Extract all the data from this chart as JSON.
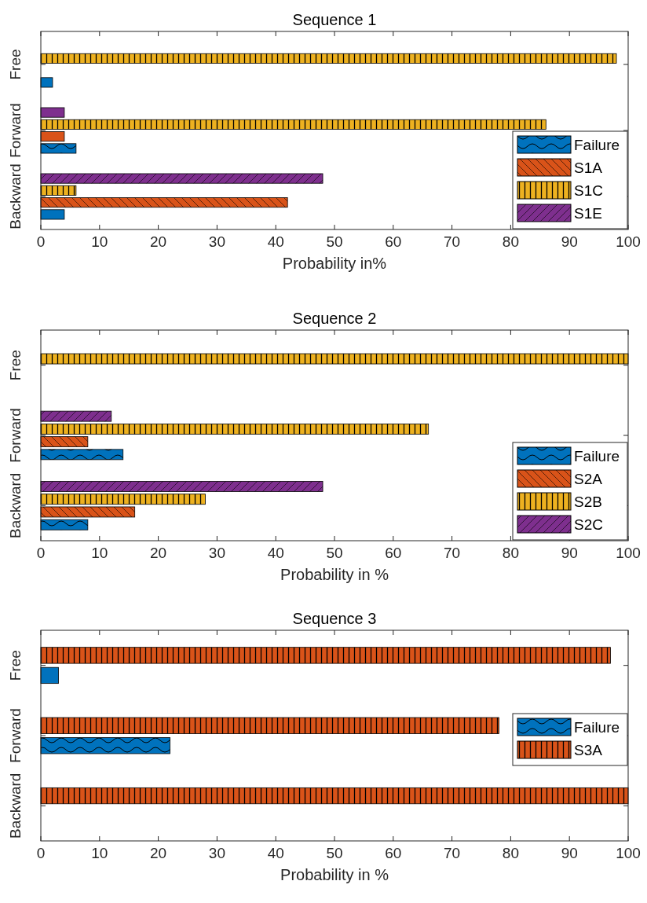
{
  "chart_data": [
    {
      "type": "bar",
      "orientation": "horizontal",
      "title": "Sequence 1",
      "xlabel": "Probability in%",
      "categories": [
        "Free",
        "Forward",
        "Backward"
      ],
      "xlim": [
        0,
        100
      ],
      "xticks": [
        0,
        10,
        20,
        30,
        40,
        50,
        60,
        70,
        80,
        90,
        100
      ],
      "legend": "bottom right",
      "series": [
        {
          "name": "Failure",
          "color": "#0072bd",
          "values": [
            2,
            6,
            4
          ]
        },
        {
          "name": "S1A",
          "color": "#d95319",
          "values": [
            0,
            4,
            42
          ]
        },
        {
          "name": "S1C",
          "color": "#edb120",
          "values": [
            98,
            86,
            6
          ]
        },
        {
          "name": "S1E",
          "color": "#7e2f8e",
          "values": [
            0,
            4,
            48
          ]
        }
      ]
    },
    {
      "type": "bar",
      "orientation": "horizontal",
      "title": "Sequence 2",
      "xlabel": "Probability in %",
      "categories": [
        "Free",
        "Forward",
        "Backward"
      ],
      "xlim": [
        0,
        100
      ],
      "xticks": [
        0,
        10,
        20,
        30,
        40,
        50,
        60,
        70,
        80,
        90,
        100
      ],
      "legend": "bottom right",
      "series": [
        {
          "name": "Failure",
          "color": "#0072bd",
          "values": [
            0,
            14,
            8
          ]
        },
        {
          "name": "S2A",
          "color": "#d95319",
          "values": [
            0,
            8,
            16
          ]
        },
        {
          "name": "S2B",
          "color": "#edb120",
          "values": [
            100,
            66,
            28
          ]
        },
        {
          "name": "S2C",
          "color": "#7e2f8e",
          "values": [
            0,
            12,
            48
          ]
        }
      ]
    },
    {
      "type": "bar",
      "orientation": "horizontal",
      "title": "Sequence 3",
      "xlabel": "Probability in %",
      "categories": [
        "Free",
        "Forward",
        "Backward"
      ],
      "xlim": [
        0,
        100
      ],
      "xticks": [
        0,
        10,
        20,
        30,
        40,
        50,
        60,
        70,
        80,
        90,
        100
      ],
      "legend": "right",
      "series": [
        {
          "name": "Failure",
          "color": "#0072bd",
          "values": [
            3,
            22,
            0
          ]
        },
        {
          "name": "S3A",
          "color": "#d95319",
          "values": [
            97,
            78,
            100
          ]
        }
      ]
    }
  ]
}
